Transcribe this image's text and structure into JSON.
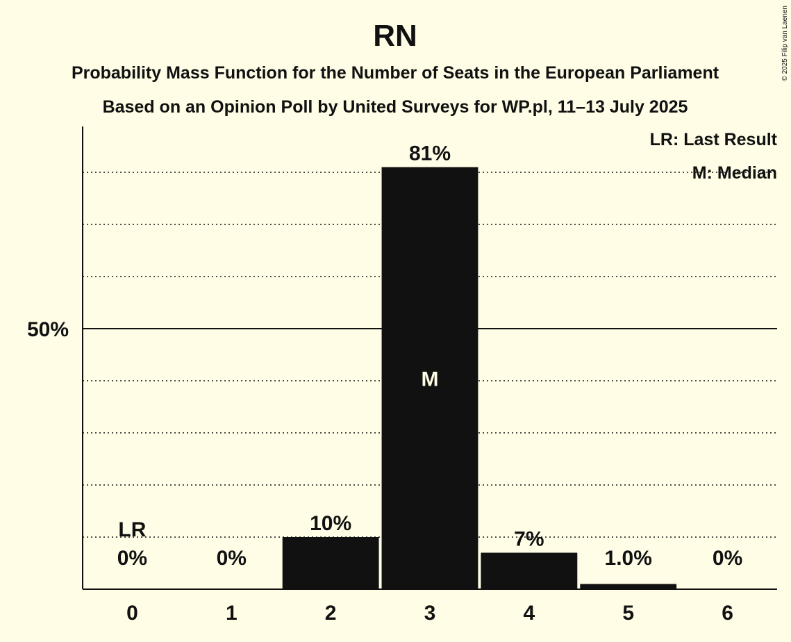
{
  "copyright": "© 2025 Filip van Laenen",
  "chart_data": {
    "type": "bar",
    "title": "RN",
    "subtitle_1": "Probability Mass Function for the Number of Seats in the European Parliament",
    "subtitle_2": "Based on an Opinion Poll by United Surveys for WP.pl, 11–13 July 2025",
    "categories": [
      "0",
      "1",
      "2",
      "3",
      "4",
      "5",
      "6"
    ],
    "values": [
      0,
      0,
      10,
      81,
      7,
      1.0,
      0
    ],
    "value_labels": [
      "0%",
      "0%",
      "10%",
      "81%",
      "7%",
      "1.0%",
      "0%"
    ],
    "ylim": [
      0,
      100
    ],
    "ytick_label": "50%",
    "ytick_value": 50,
    "gridlines": [
      10,
      20,
      30,
      40,
      60,
      70,
      80
    ],
    "last_result_category": "0",
    "last_result_marker": "LR",
    "median_category": "3",
    "median_marker": "M",
    "legend": [
      "LR: Last Result",
      "M: Median"
    ],
    "legend_position": "top-right",
    "colors": {
      "background": "#fffde6",
      "bar": "#111111",
      "text": "#111111",
      "median_text": "#fffde6"
    }
  }
}
